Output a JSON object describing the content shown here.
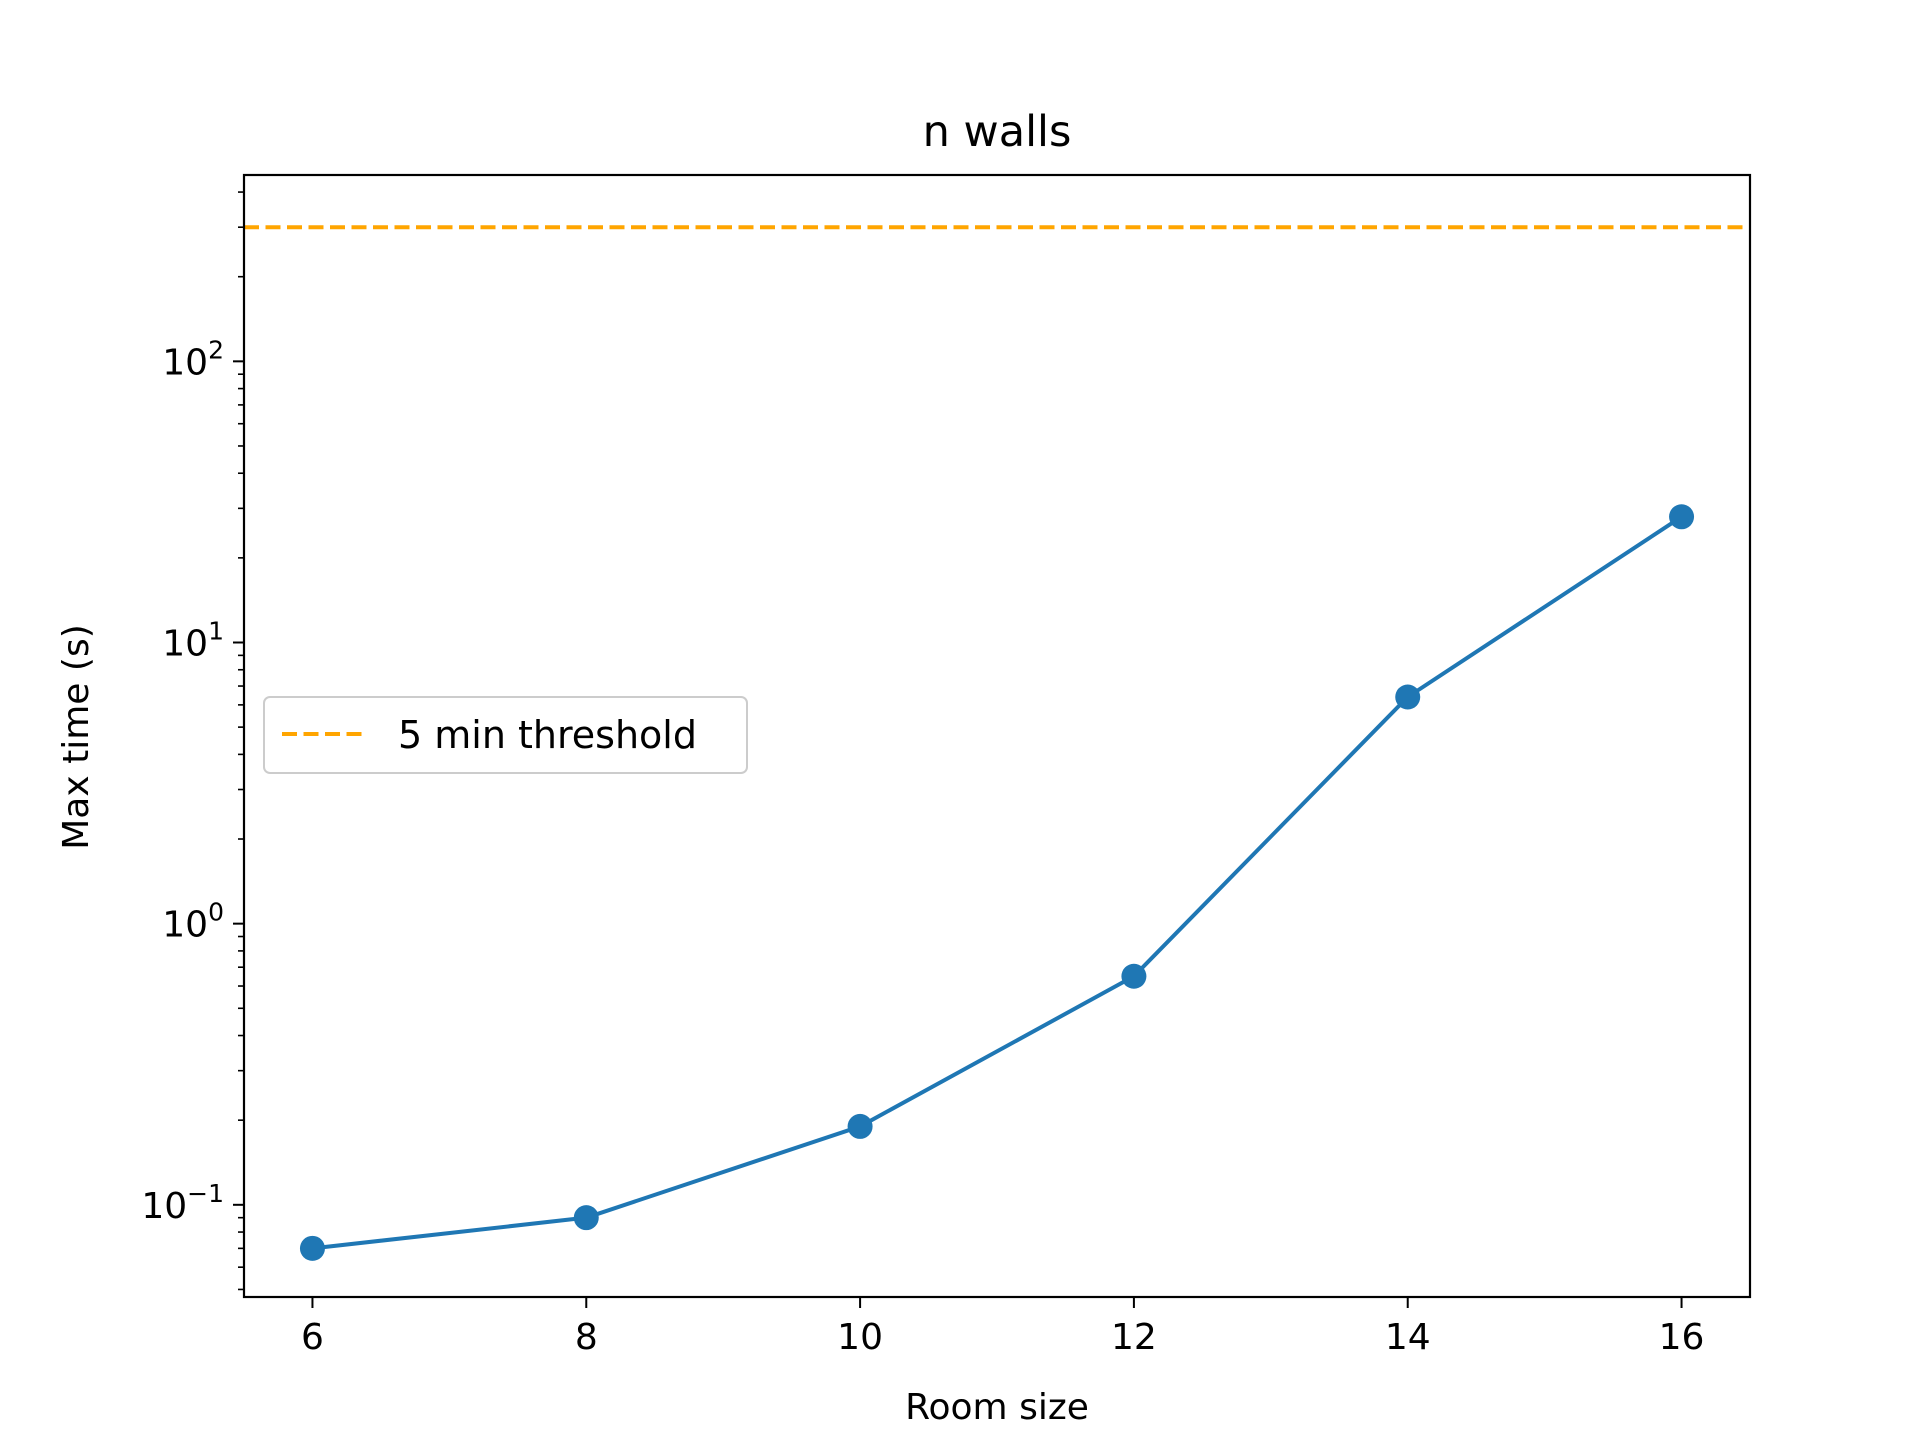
{
  "chart_data": {
    "type": "line",
    "title": "n walls",
    "xlabel": "Room size",
    "ylabel": "Max time (s)",
    "x": [
      6,
      8,
      10,
      12,
      14,
      16
    ],
    "xticks": [
      6,
      8,
      10,
      12,
      14,
      16
    ],
    "xlim": [
      5.5,
      16.5
    ],
    "yscale": "log",
    "ylim": [
      0.047,
      460
    ],
    "yticks": [
      {
        "value": 0.1,
        "base": "10",
        "exp": "−1"
      },
      {
        "value": 1,
        "base": "10",
        "exp": "0"
      },
      {
        "value": 10,
        "base": "10",
        "exp": "1"
      },
      {
        "value": 100,
        "base": "10",
        "exp": "2"
      }
    ],
    "series": [
      {
        "values": [
          0.07,
          0.09,
          0.19,
          0.65,
          6.4,
          28
        ],
        "color": "#1f77b4",
        "marker": "circle"
      }
    ],
    "reference_lines": [
      {
        "name": "5 min threshold",
        "y": 300,
        "color": "#ffa500",
        "style": "dashed"
      }
    ],
    "legend": {
      "position": "center-left",
      "entries": [
        {
          "label": "5 min threshold",
          "color": "#ffa500",
          "style": "dashed"
        }
      ]
    },
    "grid": false
  }
}
